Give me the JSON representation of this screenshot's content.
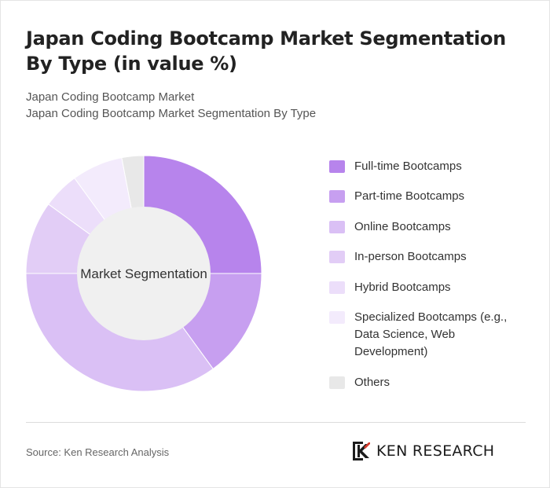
{
  "header": {
    "title": "Japan Coding Bootcamp Market Segmentation By Type (in value %)",
    "subtitle_line1": "Japan Coding Bootcamp Market",
    "subtitle_line2": "Japan Coding Bootcamp Market Segmentation By Type"
  },
  "chart_data": {
    "type": "pie",
    "center_label": "Market Segmentation",
    "categories": [
      "Full-time Bootcamps",
      "Part-time Bootcamps",
      "Online Bootcamps",
      "In-person Bootcamps",
      "Hybrid Bootcamps",
      "Specialized Bootcamps (e.g., Data Science, Web Development)",
      "Others"
    ],
    "values": [
      25,
      15,
      35,
      10,
      5,
      7,
      3
    ],
    "colors": [
      "#b784ec",
      "#c79ff0",
      "#dac0f5",
      "#e2cdf6",
      "#ecdefa",
      "#f3ebfc",
      "#e8e8e8"
    ],
    "legend_position": "right"
  },
  "footer": {
    "source": "Source: Ken Research Analysis",
    "logo_text": "KEN RESEARCH"
  }
}
